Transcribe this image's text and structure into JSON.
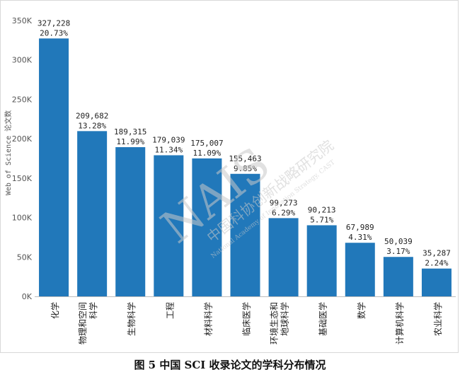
{
  "chart_data": {
    "type": "bar",
    "caption": "图 5 中国 SCI 收录论文的学科分布情况",
    "ylabel": "Web of Science 论文数",
    "ylim": [
      0,
      350000
    ],
    "yticks": [
      0,
      50000,
      100000,
      150000,
      200000,
      250000,
      300000,
      350000
    ],
    "ytick_labels": [
      "0K",
      "50K",
      "100K",
      "150K",
      "200K",
      "250K",
      "300K",
      "350K"
    ],
    "categories": [
      "化学",
      "物理和空间科学",
      "生物科学",
      "工程",
      "材料科学",
      "临床医学",
      "环境生态和地球科学",
      "基础医学",
      "数学",
      "计算机科学",
      "农业科学"
    ],
    "category_lines": [
      [
        "化学"
      ],
      [
        "物理和空间",
        "科学"
      ],
      [
        "生物科学"
      ],
      [
        "工程"
      ],
      [
        "材料科学"
      ],
      [
        "临床医学"
      ],
      [
        "环境生态和",
        "地球科学"
      ],
      [
        "基础医学"
      ],
      [
        "数学"
      ],
      [
        "计算机科学"
      ],
      [
        "农业科学"
      ]
    ],
    "values": [
      327228,
      209682,
      189315,
      179039,
      175007,
      155463,
      99273,
      90213,
      67989,
      50039,
      35287
    ],
    "value_labels": [
      "327,228",
      "209,682",
      "189,315",
      "179,039",
      "175,007",
      "155,463",
      "99,273",
      "90,213",
      "67,989",
      "50,039",
      "35,287"
    ],
    "percent_labels": [
      "20.73%",
      "13.28%",
      "11.99%",
      "11.34%",
      "11.09%",
      "9.85%",
      "6.29%",
      "5.71%",
      "4.31%",
      "3.17%",
      "2.24%"
    ],
    "bar_color": "#2178ba"
  },
  "watermark": {
    "logo": "NAIS",
    "name_cn": "中国科协创新战略研究院",
    "name_en": "National Academy of Innovation Strategy, CAST"
  }
}
